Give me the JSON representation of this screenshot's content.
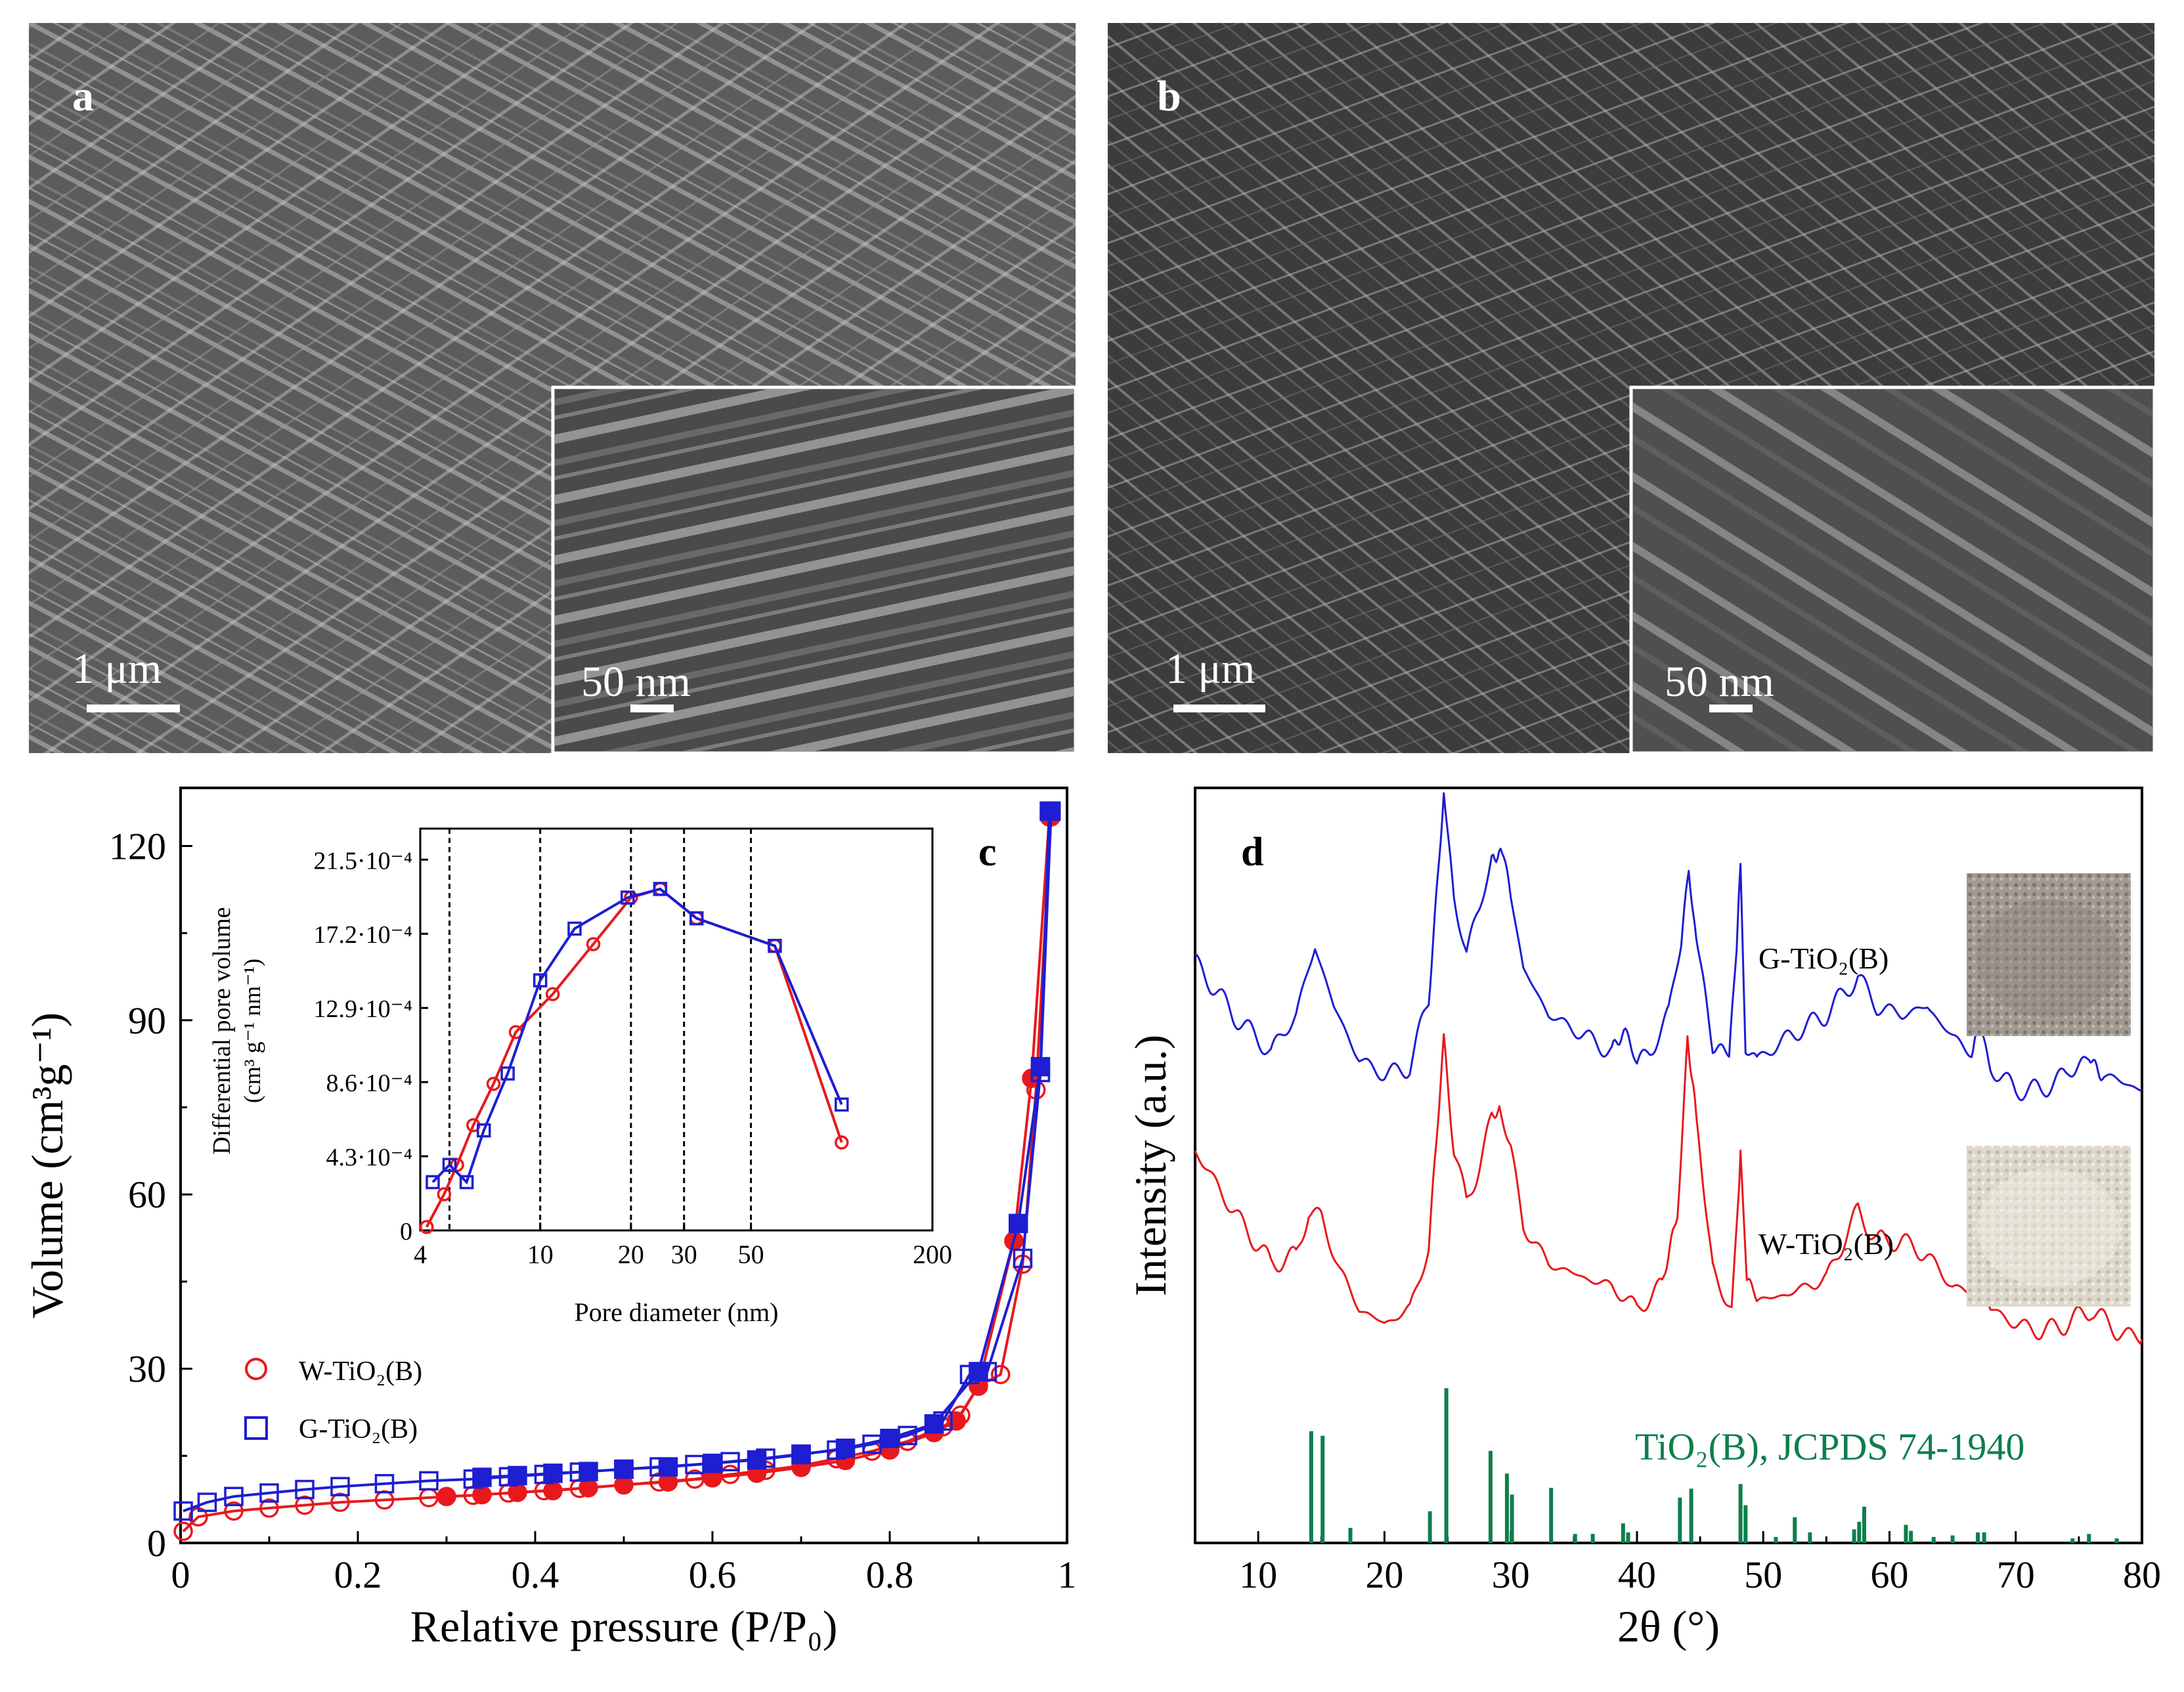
{
  "panels": {
    "a": {
      "label": "a",
      "scale_bar": "1 μm",
      "inset_scale_bar": "50 nm"
    },
    "b": {
      "label": "b",
      "scale_bar": "1 μm",
      "inset_scale_bar": "50 nm"
    },
    "c": {
      "label": "c",
      "inset_ylabel_line1": "Differential pore volume",
      "inset_ylabel_line2": "(cm³ g⁻¹ nm⁻¹)",
      "inset_xlabel": "Pore diameter (nm)"
    },
    "d": {
      "label": "d",
      "reference_label": "TiO₂(B), JCPDS 74-1940"
    }
  },
  "chart_data": [
    {
      "id": "isotherm",
      "type": "scatter",
      "title": "",
      "xlabel": "Relative pressure (P/P₀)",
      "ylabel": "Volume (cm³g⁻¹)",
      "xlim": [
        0,
        1
      ],
      "ylim": [
        0,
        130
      ],
      "xticks": [
        0,
        0.2,
        0.4,
        0.6,
        0.8,
        1
      ],
      "xtick_labels": [
        "0",
        "0.2",
        "0.4",
        "0.6",
        "0.8",
        "1"
      ],
      "yticks": [
        0,
        30,
        60,
        90,
        120
      ],
      "ytick_labels": [
        "0",
        "30",
        "60",
        "90",
        "120"
      ],
      "legend": {
        "position": "bottom-left",
        "entries": [
          "W-TiO₂(B)",
          "G-TiO₂(B)"
        ]
      },
      "series": [
        {
          "name": "W-TiO₂(B)",
          "color": "#e8191d",
          "marker": "circle",
          "adsorption": [
            [
              0.003,
              2
            ],
            [
              0.02,
              4.5
            ],
            [
              0.06,
              5.5
            ],
            [
              0.1,
              6
            ],
            [
              0.14,
              6.5
            ],
            [
              0.18,
              7
            ],
            [
              0.23,
              7.4
            ],
            [
              0.28,
              7.8
            ],
            [
              0.33,
              8.2
            ],
            [
              0.37,
              8.6
            ],
            [
              0.41,
              9
            ],
            [
              0.45,
              9.4
            ],
            [
              0.5,
              10
            ],
            [
              0.54,
              10.5
            ],
            [
              0.58,
              11
            ],
            [
              0.62,
              11.8
            ],
            [
              0.66,
              12.5
            ],
            [
              0.7,
              13.3
            ],
            [
              0.74,
              14.5
            ],
            [
              0.78,
              15.8
            ],
            [
              0.82,
              17.5
            ],
            [
              0.86,
              20
            ],
            [
              0.88,
              22
            ],
            [
              0.9,
              27
            ],
            [
              0.925,
              29
            ],
            [
              0.95,
              48
            ],
            [
              0.965,
              78
            ],
            [
              0.982,
              125
            ]
          ],
          "desorption": [
            [
              0.3,
              8
            ],
            [
              0.34,
              8.3
            ],
            [
              0.38,
              8.7
            ],
            [
              0.42,
              9
            ],
            [
              0.46,
              9.5
            ],
            [
              0.5,
              10
            ],
            [
              0.55,
              10.5
            ],
            [
              0.6,
              11.2
            ],
            [
              0.65,
              12
            ],
            [
              0.7,
              13
            ],
            [
              0.75,
              14.2
            ],
            [
              0.8,
              16
            ],
            [
              0.85,
              19
            ],
            [
              0.875,
              21
            ],
            [
              0.9,
              27
            ],
            [
              0.94,
              52
            ],
            [
              0.96,
              80
            ],
            [
              0.98,
              125
            ]
          ]
        },
        {
          "name": "G-TiO₂(B)",
          "color": "#1e1ed2",
          "marker": "square",
          "adsorption": [
            [
              0.003,
              5.5
            ],
            [
              0.03,
              7
            ],
            [
              0.06,
              8
            ],
            [
              0.1,
              8.6
            ],
            [
              0.14,
              9.2
            ],
            [
              0.18,
              9.7
            ],
            [
              0.23,
              10.2
            ],
            [
              0.28,
              10.7
            ],
            [
              0.33,
              11
            ],
            [
              0.37,
              11.4
            ],
            [
              0.41,
              11.8
            ],
            [
              0.45,
              12.2
            ],
            [
              0.5,
              12.7
            ],
            [
              0.54,
              13.1
            ],
            [
              0.58,
              13.5
            ],
            [
              0.62,
              14
            ],
            [
              0.66,
              14.6
            ],
            [
              0.7,
              15.3
            ],
            [
              0.74,
              16
            ],
            [
              0.78,
              17
            ],
            [
              0.82,
              18.5
            ],
            [
              0.86,
              21
            ],
            [
              0.89,
              29
            ],
            [
              0.91,
              29.5
            ],
            [
              0.95,
              49
            ],
            [
              0.97,
              81
            ],
            [
              0.982,
              126
            ]
          ],
          "desorption": [
            [
              0.34,
              11.3
            ],
            [
              0.38,
              11.6
            ],
            [
              0.42,
              12
            ],
            [
              0.46,
              12.3
            ],
            [
              0.5,
              12.7
            ],
            [
              0.55,
              13.1
            ],
            [
              0.6,
              13.7
            ],
            [
              0.65,
              14.3
            ],
            [
              0.7,
              15.2
            ],
            [
              0.75,
              16.3
            ],
            [
              0.8,
              18
            ],
            [
              0.85,
              20.5
            ],
            [
              0.9,
              29.5
            ],
            [
              0.945,
              55
            ],
            [
              0.97,
              82
            ],
            [
              0.98,
              126
            ]
          ]
        }
      ]
    },
    {
      "id": "pore_inset",
      "type": "line",
      "xlabel": "Pore diameter (nm)",
      "ylabel": "Differential pore volume (cm³ g⁻¹ nm⁻¹)",
      "xscale": "log",
      "xlim": [
        4,
        200
      ],
      "ylim": [
        0,
        0.00233
      ],
      "xticks": [
        4,
        10,
        20,
        30,
        50,
        200
      ],
      "xtick_labels": [
        "4",
        "10",
        "20",
        "30",
        "50",
        "200"
      ],
      "yticks": [
        0,
        0.00043,
        0.00086,
        0.00129,
        0.00172,
        0.00215
      ],
      "ytick_labels": [
        "0",
        "4.3·10⁻⁴",
        "8.6·10⁻⁴",
        "12.9·10⁻⁴",
        "17.2·10⁻⁴",
        "21.5·10⁻⁴"
      ],
      "vlines": [
        5,
        10,
        20,
        30,
        50
      ],
      "series": [
        {
          "name": "W-TiO₂(B)",
          "color": "#e8191d",
          "marker": "circle",
          "x": [
            4.2,
            4.8,
            5.3,
            6.0,
            7.0,
            8.3,
            11.0,
            15.0,
            20.0,
            25.0,
            33.0,
            60.0,
            100.0
          ],
          "y": [
            2e-05,
            0.00021,
            0.00038,
            0.00061,
            0.00085,
            0.00115,
            0.00137,
            0.00166,
            0.00193,
            0.00198,
            0.00181,
            0.00165,
            0.00051
          ]
        },
        {
          "name": "G-TiO₂(B)",
          "color": "#1e1ed2",
          "marker": "square",
          "x": [
            4.4,
            5.0,
            5.7,
            6.5,
            7.8,
            10.0,
            13.0,
            19.5,
            25.0,
            33.0,
            60.0,
            100.0
          ],
          "y": [
            0.00028,
            0.00038,
            0.00028,
            0.00058,
            0.00091,
            0.00145,
            0.00175,
            0.00193,
            0.00198,
            0.00181,
            0.00165,
            0.00073
          ]
        }
      ]
    },
    {
      "id": "xrd",
      "type": "line",
      "xlabel": "2θ (°)",
      "ylabel": "Intensity (a.u.)",
      "xlim": [
        5,
        80
      ],
      "ylim": [
        0,
        100
      ],
      "xticks": [
        10,
        20,
        30,
        40,
        50,
        60,
        70,
        80
      ],
      "xtick_labels": [
        "10",
        "20",
        "30",
        "40",
        "50",
        "60",
        "70",
        "80"
      ],
      "series": [
        {
          "name": "G-TiO₂(B)",
          "color": "#1e1ed2",
          "x": [
            5,
            8,
            11,
            13,
            14.5,
            16,
            18,
            20,
            22,
            23.5,
            24.7,
            25.5,
            26.5,
            27.5,
            28.5,
            29.2,
            30,
            31,
            33,
            36,
            38,
            39.2,
            40,
            41,
            42.5,
            43.5,
            44.1,
            44.7,
            46,
            47.3,
            47.9,
            48.2,
            48.6,
            49.5,
            52,
            55,
            57.5,
            59,
            61,
            63,
            65,
            66.5,
            67.2,
            68,
            70,
            72,
            74,
            75.8,
            77,
            80
          ],
          "y": [
            77,
            70,
            65,
            70,
            79,
            71,
            64,
            62,
            63,
            72,
            100,
            86,
            78,
            84,
            91,
            92,
            86,
            76,
            70,
            67,
            65,
            67,
            63,
            65,
            70,
            80,
            90,
            80,
            65,
            65,
            80,
            89,
            66,
            64,
            67,
            70,
            75,
            71,
            70,
            71,
            67,
            65,
            69,
            63,
            60,
            60,
            62,
            65,
            62,
            60
          ]
        },
        {
          "name": "W-TiO₂(B)",
          "color": "#e8191d",
          "x": [
            5,
            8,
            11,
            13,
            14,
            15,
            16.5,
            18,
            20,
            22,
            23.5,
            24.7,
            25.5,
            26.5,
            27.5,
            28.5,
            29.1,
            30,
            31,
            33,
            36,
            38,
            40,
            42,
            43.2,
            44,
            44.7,
            46,
            47.5,
            48,
            48.2,
            48.7,
            49.5,
            52,
            55,
            57.5,
            59,
            61,
            63,
            65,
            66.5,
            67,
            68,
            70,
            72,
            74,
            76,
            78,
            80
          ],
          "y": [
            52,
            44,
            37,
            38,
            44,
            43,
            36,
            31,
            29,
            31,
            39,
            66,
            52,
            45,
            50,
            56,
            57,
            52,
            42,
            37,
            35,
            34,
            31,
            34,
            44,
            66,
            56,
            36,
            31,
            44,
            52,
            35,
            32,
            33,
            35,
            44,
            40,
            40,
            38,
            34,
            33,
            36,
            31,
            29,
            28,
            29,
            31,
            28,
            27
          ]
        },
        {
          "name": "TiO₂(B), JCPDS 74-1940",
          "type": "stick",
          "color": "#0d7f4c",
          "x": [
            14.2,
            15.1,
            17.3,
            23.6,
            24.9,
            28.4,
            29.7,
            30.1,
            33.2,
            35.1,
            36.5,
            38.9,
            39.3,
            43.4,
            44.3,
            48.2,
            48.6,
            51,
            52.5,
            53.7,
            57.2,
            57.6,
            58,
            61.3,
            61.7,
            63.5,
            65,
            67,
            67.5,
            74.5,
            75.8,
            78
          ],
          "y": [
            14.8,
            14.2,
            2,
            4.2,
            20.5,
            12.2,
            9.2,
            6.4,
            7.3,
            1.2,
            1.2,
            2.6,
            1.4,
            6,
            7.2,
            7.8,
            5,
            0.8,
            3.4,
            1.4,
            1.8,
            2.8,
            4.8,
            2.4,
            1.6,
            0.8,
            1,
            1.4,
            1.4,
            0.6,
            1.2,
            0.6
          ]
        }
      ],
      "annotations": [
        "G-TiO₂(B)",
        "W-TiO₂(B)"
      ]
    }
  ]
}
